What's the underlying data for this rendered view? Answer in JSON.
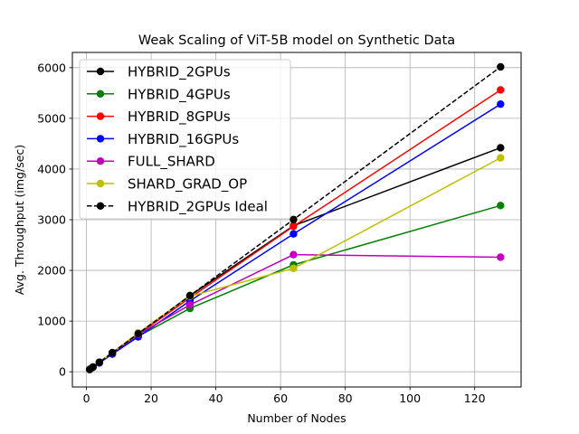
{
  "chart_data": {
    "type": "line",
    "title": "Weak Scaling of ViT-5B model on Synthetic Data",
    "xlabel": "Number of Nodes",
    "ylabel": "Avg. Throughput (img/sec)",
    "xlim": [
      -4.35,
      134.35
    ],
    "ylim": [
      -300,
      6300
    ],
    "xticks": [
      0,
      20,
      40,
      60,
      80,
      100,
      120
    ],
    "yticks": [
      0,
      1000,
      2000,
      3000,
      4000,
      5000,
      6000
    ],
    "grid": true,
    "legend_position": "top-left",
    "x": [
      1,
      2,
      4,
      8,
      16,
      32,
      64,
      128
    ],
    "series": [
      {
        "name": "HYBRID_2GPUs",
        "color": "#000000",
        "dashed": false,
        "values": [
          47,
          94,
          188,
          376,
          751,
          1502,
          2880,
          4420
        ]
      },
      {
        "name": "HYBRID_4GPUs",
        "color": "#008000",
        "dashed": false,
        "values": [
          45,
          90,
          180,
          350,
          700,
          1250,
          2110,
          3280
        ]
      },
      {
        "name": "HYBRID_8GPUs",
        "color": "#ff0000",
        "dashed": false,
        "values": [
          46,
          92,
          185,
          370,
          740,
          1460,
          2870,
          5560
        ]
      },
      {
        "name": "HYBRID_16GPUs",
        "color": "#0000ff",
        "dashed": false,
        "values": [
          44,
          88,
          175,
          350,
          690,
          1400,
          2720,
          5280
        ]
      },
      {
        "name": "FULL_SHARD",
        "color": "#bf00bf",
        "dashed": false,
        "values": [
          45,
          92,
          185,
          370,
          740,
          1320,
          2310,
          2260
        ]
      },
      {
        "name": "SHARD_GRAD_OP",
        "color": "#bfbf00",
        "dashed": false,
        "values": [
          47,
          95,
          190,
          380,
          770,
          1490,
          2040,
          4220
        ]
      },
      {
        "name": "HYBRID_2GPUs Ideal",
        "color": "#000000",
        "dashed": true,
        "values": [
          47,
          94,
          188,
          376,
          751,
          1502,
          3004,
          6015
        ]
      }
    ]
  }
}
